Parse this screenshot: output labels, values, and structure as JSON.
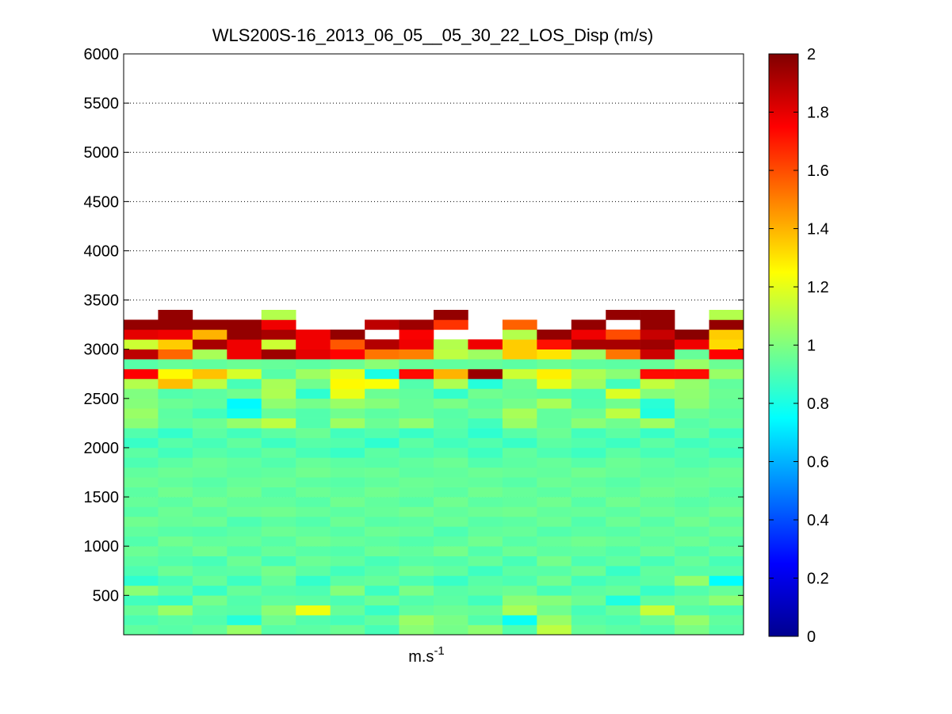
{
  "chart_data": {
    "type": "heatmap",
    "title": "WLS200S-16_2013_06_05__05_30_22_LOS_Disp (m/s)",
    "xlabel": "m.s",
    "xlabel_superscript": "-1",
    "ylabel": "",
    "ylim": [
      100,
      6000
    ],
    "yticks": [
      500,
      1000,
      1500,
      2000,
      2500,
      3000,
      3500,
      4000,
      4500,
      5000,
      5500,
      6000
    ],
    "grid": true,
    "colormap": "jet",
    "clim": [
      0,
      2
    ],
    "colorbar_ticks": [
      0,
      0.2,
      0.4,
      0.6,
      0.8,
      1,
      1.2,
      1.4,
      1.6,
      1.8,
      2
    ],
    "n_columns": 18,
    "layer_height": 100,
    "z_start": 100,
    "values_note": "rows listed bottom (100 m) to top (3300 m); null = no data; 18 columns each",
    "z": [
      [
        0.94,
        0.92,
        0.95,
        1.05,
        0.92,
        0.93,
        0.96,
        0.89,
        1.02,
        0.98,
        1.03,
        0.91,
        1.12,
        0.95,
        0.93,
        0.91,
        0.99,
        0.92
      ],
      [
        0.9,
        0.93,
        0.91,
        0.82,
        0.97,
        0.91,
        0.89,
        0.94,
        1.05,
        0.99,
        0.91,
        0.77,
        1.05,
        0.92,
        0.9,
        0.96,
        1.04,
        0.94
      ],
      [
        0.95,
        1.05,
        0.93,
        0.92,
        1.02,
        1.22,
        0.95,
        0.86,
        0.94,
        0.96,
        0.95,
        1.08,
        0.97,
        0.89,
        0.95,
        1.14,
        0.92,
        0.9
      ],
      [
        0.88,
        0.86,
        0.98,
        0.91,
        0.94,
        0.93,
        0.9,
        0.96,
        0.91,
        0.93,
        0.88,
        1.02,
        1.01,
        0.96,
        0.81,
        0.94,
        0.96,
        1.03
      ],
      [
        1.02,
        0.94,
        0.86,
        0.95,
        0.91,
        0.9,
        1.01,
        0.87,
        0.99,
        0.92,
        0.94,
        0.96,
        0.89,
        0.93,
        0.95,
        0.86,
        0.91,
        0.95
      ],
      [
        0.84,
        0.89,
        0.95,
        0.87,
        0.95,
        0.85,
        0.93,
        0.95,
        0.9,
        0.86,
        0.92,
        0.9,
        0.97,
        0.88,
        0.91,
        0.93,
        1.04,
        0.75
      ],
      [
        0.9,
        0.96,
        0.92,
        0.93,
        0.98,
        0.93,
        0.88,
        0.92,
        0.97,
        0.94,
        0.87,
        0.93,
        0.92,
        0.96,
        0.86,
        0.94,
        0.92,
        0.92
      ],
      [
        0.93,
        0.91,
        0.89,
        0.96,
        0.89,
        0.96,
        0.94,
        0.89,
        0.92,
        0.91,
        0.95,
        0.89,
        0.98,
        0.9,
        0.94,
        0.89,
        0.95,
        0.89
      ],
      [
        0.96,
        0.93,
        0.97,
        0.91,
        0.95,
        0.92,
        0.91,
        0.96,
        0.94,
        0.98,
        0.91,
        0.96,
        0.93,
        0.94,
        0.91,
        0.96,
        0.91,
        0.95
      ],
      [
        0.91,
        0.97,
        0.94,
        0.95,
        0.92,
        0.97,
        0.95,
        0.93,
        0.91,
        0.93,
        0.97,
        0.92,
        0.95,
        0.97,
        0.95,
        0.93,
        0.96,
        0.92
      ],
      [
        0.94,
        0.92,
        0.91,
        0.93,
        0.96,
        0.94,
        0.92,
        0.96,
        0.95,
        0.9,
        0.94,
        0.95,
        0.91,
        0.93,
        0.92,
        0.95,
        0.93,
        0.96
      ],
      [
        0.97,
        0.95,
        0.96,
        0.9,
        0.93,
        0.91,
        0.96,
        0.92,
        0.93,
        0.96,
        0.92,
        0.93,
        0.96,
        0.91,
        0.96,
        0.92,
        0.97,
        0.93
      ],
      [
        0.92,
        0.96,
        0.93,
        0.96,
        0.97,
        0.95,
        0.93,
        0.95,
        0.97,
        0.94,
        0.96,
        0.97,
        0.94,
        0.95,
        0.93,
        0.96,
        0.94,
        0.97
      ],
      [
        0.95,
        0.93,
        0.97,
        0.94,
        0.94,
        0.92,
        0.97,
        0.94,
        0.92,
        0.97,
        0.93,
        0.94,
        0.97,
        0.92,
        0.97,
        0.94,
        0.92,
        0.94
      ],
      [
        0.93,
        0.97,
        0.94,
        0.97,
        0.92,
        0.96,
        0.94,
        0.97,
        0.95,
        0.93,
        0.97,
        0.95,
        0.93,
        0.96,
        0.94,
        0.97,
        0.95,
        0.92
      ],
      [
        0.96,
        0.94,
        0.92,
        0.95,
        0.96,
        0.93,
        0.92,
        0.94,
        0.96,
        0.95,
        0.94,
        0.92,
        0.96,
        0.94,
        0.92,
        0.95,
        0.96,
        0.95
      ],
      [
        0.94,
        0.96,
        0.95,
        0.93,
        0.94,
        0.97,
        0.95,
        0.96,
        0.93,
        0.94,
        0.96,
        0.95,
        0.94,
        0.97,
        0.95,
        0.93,
        0.94,
        0.96
      ],
      [
        0.9,
        0.93,
        0.96,
        0.94,
        0.91,
        0.95,
        0.93,
        0.92,
        0.94,
        0.96,
        0.91,
        0.93,
        0.95,
        0.92,
        0.96,
        0.94,
        0.91,
        0.93
      ],
      [
        0.93,
        0.88,
        0.92,
        0.9,
        0.94,
        0.89,
        0.86,
        0.93,
        0.9,
        0.92,
        0.87,
        0.94,
        0.9,
        0.87,
        0.93,
        0.89,
        0.92,
        0.88
      ],
      [
        0.86,
        0.92,
        0.89,
        0.94,
        0.87,
        0.92,
        0.91,
        0.84,
        0.93,
        0.88,
        0.91,
        0.86,
        0.93,
        0.91,
        0.87,
        0.93,
        0.88,
        0.91
      ],
      [
        0.91,
        0.85,
        0.93,
        0.88,
        0.93,
        0.96,
        0.88,
        0.91,
        0.86,
        0.91,
        0.84,
        0.92,
        0.96,
        0.88,
        0.93,
        0.86,
        0.94,
        0.87
      ],
      [
        1.02,
        0.94,
        0.96,
        1.04,
        1.12,
        0.91,
        1.06,
        0.96,
        1.03,
        0.93,
        0.88,
        1.05,
        0.94,
        1.02,
        0.97,
        1.06,
        0.92,
        0.95
      ],
      [
        1.05,
        0.93,
        0.88,
        0.78,
        0.95,
        0.91,
        0.97,
        0.93,
        0.95,
        0.92,
        0.96,
        1.08,
        0.94,
        0.96,
        1.12,
        0.81,
        0.96,
        0.93
      ],
      [
        1.01,
        0.96,
        0.94,
        0.74,
        1.03,
        0.98,
        1.05,
        1.01,
        0.95,
        0.99,
        0.93,
        0.98,
        1.08,
        0.91,
        0.97,
        0.83,
        1.02,
        0.95
      ],
      [
        1.0,
        0.91,
        0.93,
        0.97,
        1.09,
        0.84,
        1.21,
        0.96,
        0.94,
        0.85,
        0.97,
        0.95,
        0.93,
        0.9,
        1.18,
        1.01,
        1.03,
        0.96
      ],
      [
        1.1,
        1.38,
        1.12,
        0.89,
        1.08,
        0.97,
        1.26,
        1.24,
        0.91,
        1.09,
        0.82,
        0.96,
        1.2,
        1.06,
        0.88,
        1.13,
        1.04,
        0.94
      ],
      [
        1.75,
        1.26,
        1.37,
        1.17,
        0.92,
        1.06,
        1.2,
        0.8,
        1.73,
        1.4,
        1.95,
        1.15,
        1.28,
        1.09,
        1.02,
        1.73,
        1.73,
        1.05
      ],
      [
        0.92,
        0.95,
        0.94,
        0.96,
        0.95,
        0.93,
        0.96,
        1.02,
        0.95,
        0.94,
        0.95,
        0.93,
        0.96,
        0.94,
        0.93,
        0.95,
        1.05,
        0.96
      ],
      [
        1.88,
        1.55,
        1.08,
        1.78,
        1.94,
        1.8,
        1.75,
        1.52,
        1.5,
        1.12,
        1.06,
        1.35,
        1.3,
        1.06,
        1.52,
        1.85,
        0.95,
        1.75
      ],
      [
        1.15,
        1.35,
        1.92,
        1.78,
        1.15,
        1.78,
        1.58,
        1.9,
        1.78,
        1.1,
        1.78,
        1.35,
        1.72,
        1.92,
        1.92,
        1.94,
        1.78,
        1.32
      ],
      [
        1.8,
        1.78,
        1.4,
        1.96,
        1.92,
        1.78,
        1.96,
        null,
        1.76,
        null,
        null,
        1.1,
        1.96,
        1.78,
        1.6,
        1.86,
        1.98,
        1.35
      ],
      [
        1.96,
        1.96,
        1.96,
        1.96,
        1.78,
        null,
        null,
        1.88,
        1.94,
        1.65,
        null,
        1.56,
        null,
        1.96,
        null,
        1.96,
        null,
        1.96
      ],
      [
        null,
        1.96,
        null,
        null,
        1.1,
        null,
        null,
        null,
        null,
        1.96,
        null,
        null,
        null,
        null,
        1.96,
        1.96,
        null,
        1.1
      ]
    ]
  }
}
